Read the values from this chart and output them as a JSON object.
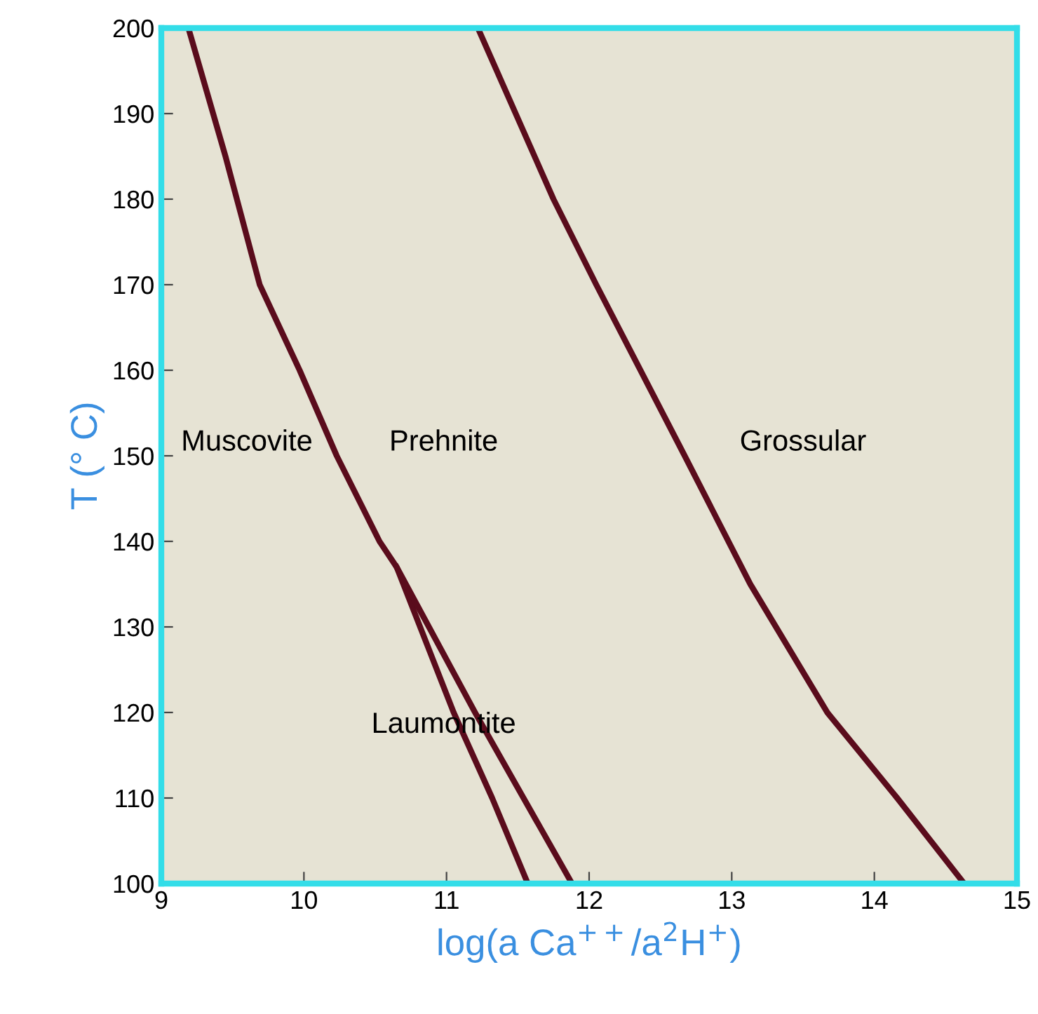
{
  "chart_data": {
    "type": "line",
    "xlabel": "log(a Ca$^{++}$/a$^{2}$H$^{+}$)",
    "ylabel": "T (° C)",
    "xlim": [
      9,
      15
    ],
    "ylim": [
      100,
      200
    ],
    "xticks": [
      9,
      10,
      11,
      12,
      13,
      14,
      15
    ],
    "yticks": [
      100,
      110,
      120,
      130,
      140,
      150,
      160,
      170,
      180,
      190,
      200
    ],
    "grid": false,
    "legend": false,
    "marker": "none",
    "line_style": "solid",
    "series": [
      {
        "color": "#5a0c1c",
        "x": [
          9.19,
          9.45,
          9.69,
          9.97,
          10.23,
          10.53,
          10.65,
          11.05,
          11.32,
          11.57
        ],
        "values": [
          200,
          185,
          170,
          160,
          150,
          140,
          137,
          120,
          110,
          100
        ]
      },
      {
        "color": "#5a0c1c",
        "x": [
          10.65,
          11.2,
          11.88
        ],
        "values": [
          137,
          120,
          100
        ]
      },
      {
        "color": "#5a0c1c",
        "x": [
          11.22,
          11.75,
          12.05,
          12.67,
          13.13,
          13.67,
          14.16,
          14.63
        ],
        "values": [
          200,
          180,
          170,
          150,
          135,
          120,
          110,
          100
        ]
      }
    ],
    "annotations": [
      "Muscovite",
      "Prehnite",
      "Grossular",
      "Laumontite"
    ]
  }
}
